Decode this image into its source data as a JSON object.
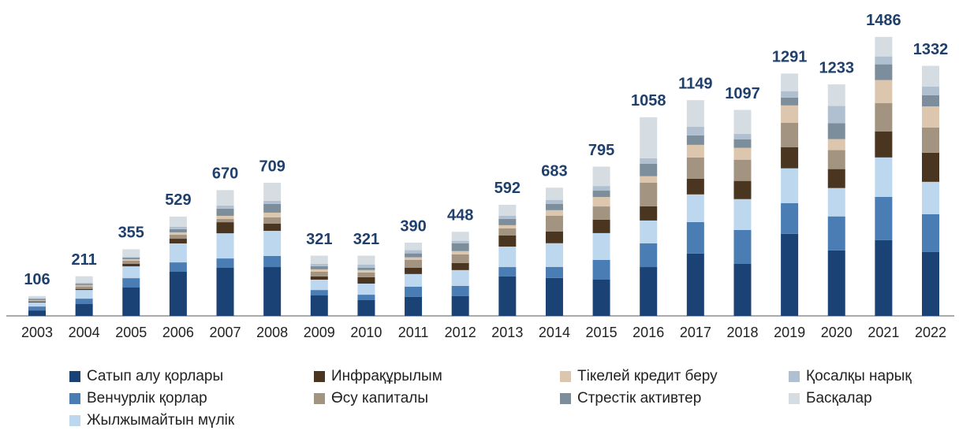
{
  "chart_data": {
    "type": "stacked-bar",
    "categories": [
      "2003",
      "2004",
      "2005",
      "2006",
      "2007",
      "2008",
      "2009",
      "2010",
      "2011",
      "2012",
      "2013",
      "2014",
      "2015",
      "2016",
      "2017",
      "2018",
      "2019",
      "2020",
      "2021",
      "2022"
    ],
    "totals": [
      106,
      211,
      355,
      529,
      670,
      709,
      321,
      321,
      390,
      448,
      592,
      683,
      795,
      1058,
      1149,
      1097,
      1291,
      1233,
      1486,
      1332
    ],
    "ylim": [
      0,
      1500
    ],
    "series": [
      {
        "name": "Сатып алу қорлары",
        "color": "#1b4275",
        "values": [
          29,
          63,
          151,
          235,
          256,
          260,
          109,
          84,
          101,
          105,
          210,
          202,
          193,
          260,
          332,
          277,
          437,
          349,
          403,
          340
        ]
      },
      {
        "name": "Венчурлік қорлар",
        "color": "#4a7db3",
        "values": [
          21,
          29,
          50,
          50,
          50,
          59,
          29,
          29,
          55,
          55,
          50,
          59,
          105,
          126,
          168,
          181,
          164,
          181,
          231,
          202
        ]
      },
      {
        "name": "Жылжымайтын мүлік",
        "color": "#bdd7ef",
        "values": [
          21,
          46,
          63,
          101,
          134,
          134,
          55,
          59,
          67,
          84,
          109,
          126,
          143,
          122,
          147,
          164,
          185,
          151,
          210,
          172
        ]
      },
      {
        "name": "Инфрақұрылым",
        "color": "#4a3620",
        "values": [
          4,
          6,
          13,
          25,
          59,
          38,
          17,
          34,
          34,
          38,
          59,
          63,
          71,
          76,
          84,
          97,
          113,
          101,
          139,
          155
        ]
      },
      {
        "name": "Өсу капиталы",
        "color": "#a39481",
        "values": [
          6,
          13,
          17,
          21,
          17,
          34,
          25,
          25,
          42,
          46,
          38,
          84,
          71,
          126,
          113,
          113,
          130,
          101,
          151,
          134
        ]
      },
      {
        "name": "Тікелей кредит беру",
        "color": "#dcc6ae",
        "values": [
          2,
          6,
          8,
          13,
          17,
          25,
          13,
          13,
          13,
          17,
          17,
          29,
          50,
          34,
          67,
          63,
          92,
          59,
          122,
          113
        ]
      },
      {
        "name": "Стрестік активтер",
        "color": "#7c8e9b",
        "values": [
          8,
          8,
          8,
          17,
          38,
          46,
          17,
          13,
          21,
          42,
          34,
          34,
          34,
          67,
          50,
          46,
          42,
          84,
          84,
          59
        ]
      },
      {
        "name": "Қосалқы нарық",
        "color": "#b1c0d1",
        "values": [
          4,
          6,
          4,
          13,
          17,
          17,
          13,
          17,
          17,
          13,
          17,
          21,
          25,
          29,
          46,
          29,
          34,
          92,
          42,
          46
        ]
      },
      {
        "name": "Басқалар",
        "color": "#d5dce2",
        "values": [
          11,
          34,
          41,
          54,
          82,
          96,
          43,
          47,
          40,
          48,
          58,
          65,
          103,
          218,
          142,
          127,
          94,
          115,
          104,
          111
        ]
      }
    ]
  }
}
